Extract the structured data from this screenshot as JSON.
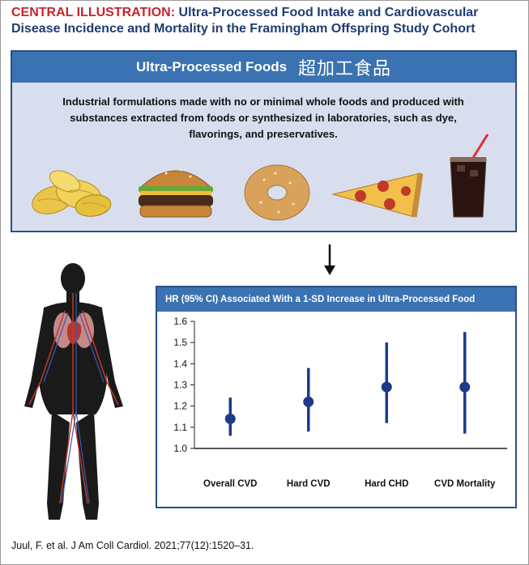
{
  "header": {
    "label": "CENTRAL ILLUSTRATION:",
    "title": "Ultra-Processed Food Intake and Cardiovascular Disease Incidence and Mortality in the Framingham Offspring Study Cohort"
  },
  "upf_panel": {
    "banner_title": "Ultra-Processed Foods",
    "banner_cjk": "超加工食品",
    "definition": "Industrial formulations made with no or minimal whole foods and produced with substances extracted from foods or synthesized in laboratories, such as dye, flavorings, and preservatives.",
    "foods": [
      "chips-icon",
      "burger-icon",
      "bagel-icon",
      "pizza-slice-icon",
      "soda-icon"
    ]
  },
  "chart_panel": {
    "title": "HR (95% CI) Associated With a 1-SD Increase in Ultra-Processed Food"
  },
  "chart_data": {
    "type": "scatter",
    "subtype": "forest-plot",
    "title": "HR (95% CI) Associated With a 1-SD Increase in Ultra-Processed Food",
    "categories": [
      "Overall CVD",
      "Hard CVD",
      "Hard CHD",
      "CVD Mortality"
    ],
    "estimates": [
      1.14,
      1.22,
      1.29,
      1.29
    ],
    "ci_lower": [
      1.06,
      1.08,
      1.12,
      1.07
    ],
    "ci_upper": [
      1.24,
      1.38,
      1.5,
      1.55
    ],
    "yticks": [
      "1.0",
      "1.1",
      "1.2",
      "1.3",
      "1.4",
      "1.5",
      "1.6"
    ],
    "ylim": [
      1.0,
      1.6
    ],
    "reference_line": 1.0,
    "colors": {
      "marker": "#1f3a8a"
    }
  },
  "citation": "Juul, F. et al. J Am Coll Cardiol. 2021;77(12):1520–31."
}
